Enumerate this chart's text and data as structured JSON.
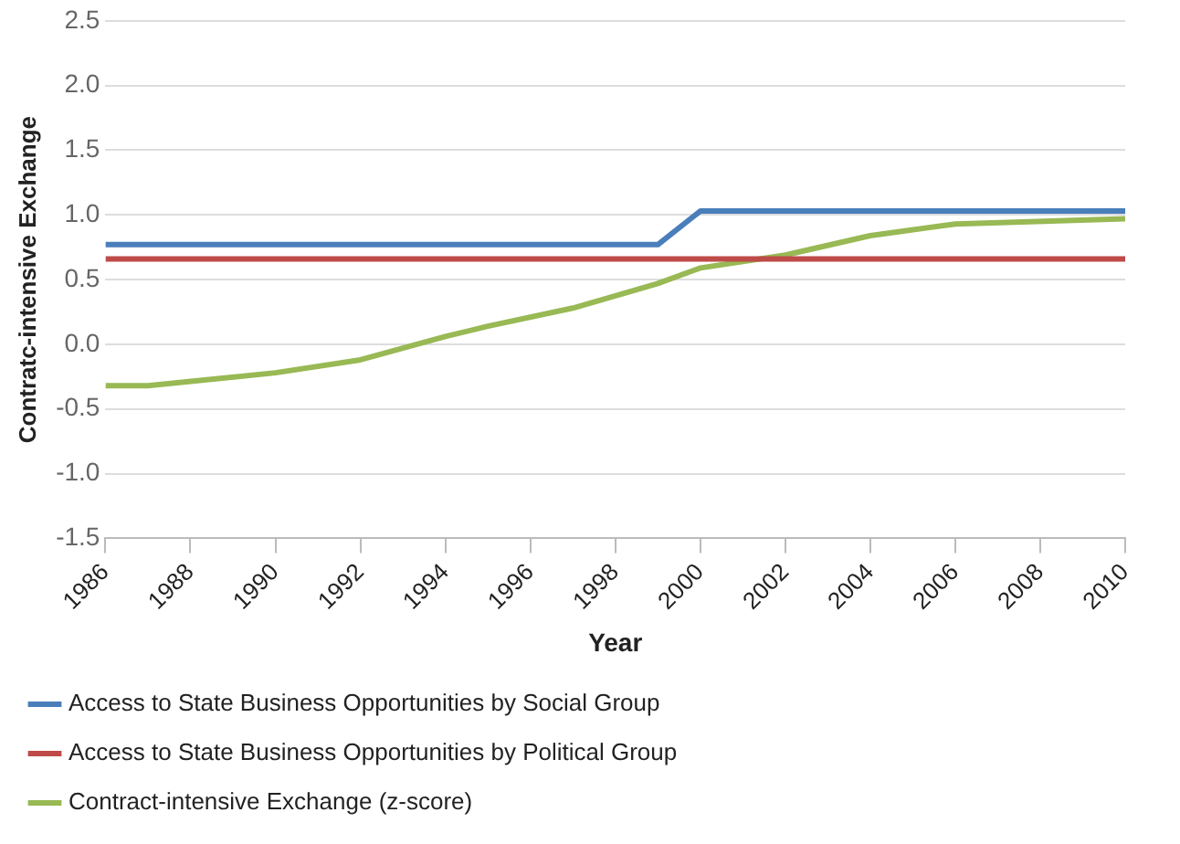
{
  "chart_data": {
    "type": "line",
    "xlabel": "Year",
    "ylabel": "Contratc-intensive Exchange",
    "xlim": [
      1986,
      2010
    ],
    "xticks": [
      1986,
      1988,
      1990,
      1992,
      1994,
      1996,
      1998,
      2000,
      2002,
      2004,
      2006,
      2008,
      2010
    ],
    "ylim": [
      -1.5,
      2.5
    ],
    "yticks": [
      -1.5,
      {
        "value": -1,
        "label": "-1.0"
      },
      -0.5,
      {
        "value": 0,
        "label": "0.0"
      },
      0.5,
      {
        "value": 1,
        "label": "1.0"
      },
      1.5,
      {
        "value": 2,
        "label": "2.0"
      },
      2.5
    ],
    "grid": "y",
    "legend": "bottom",
    "marker": "none",
    "line_style": "solid",
    "series": [
      {
        "name": "Access to State Business Opportunities by Social Group",
        "color": "#4a7ebb",
        "x": [
          1986,
          1999,
          2000,
          2010
        ],
        "values": [
          0.77,
          0.77,
          1.03,
          1.03
        ]
      },
      {
        "name": "Access to State Business Opportunities by Political Group",
        "color": "#be4b48",
        "x": [
          1986,
          2010
        ],
        "values": [
          0.66,
          0.66
        ]
      },
      {
        "name": "Contract-intensive Exchange (z-score)",
        "color": "#98b954",
        "x": [
          1986,
          1987,
          1990,
          1992,
          1994,
          1995,
          1997,
          1999,
          2000,
          2002,
          2004,
          2006,
          2010
        ],
        "values": [
          -0.32,
          -0.32,
          -0.22,
          -0.12,
          0.06,
          0.14,
          0.28,
          0.47,
          0.59,
          0.69,
          0.84,
          0.93,
          0.97
        ]
      }
    ]
  }
}
